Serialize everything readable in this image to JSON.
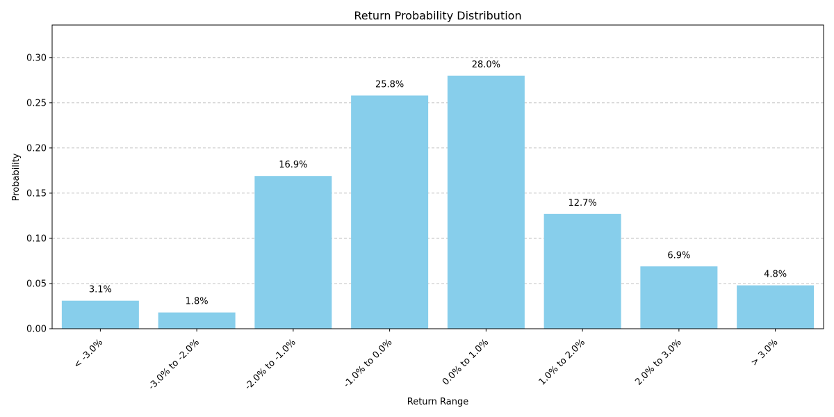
{
  "chart_data": {
    "type": "bar",
    "title": "Return Probability Distribution",
    "xlabel": "Return Range",
    "ylabel": "Probability",
    "categories": [
      "< -3.0%",
      "-3.0% to -2.0%",
      "-2.0% to -1.0%",
      "-1.0% to 0.0%",
      "0.0% to 1.0%",
      "1.0% to 2.0%",
      "2.0% to 3.0%",
      "> 3.0%"
    ],
    "values": [
      0.031,
      0.018,
      0.169,
      0.258,
      0.28,
      0.127,
      0.069,
      0.048
    ],
    "data_labels": [
      "3.1%",
      "1.8%",
      "16.9%",
      "25.8%",
      "28.0%",
      "12.7%",
      "6.9%",
      "4.8%"
    ],
    "yticks": [
      0.0,
      0.05,
      0.1,
      0.15,
      0.2,
      0.25,
      0.3
    ],
    "ytick_labels": [
      "0.00",
      "0.05",
      "0.10",
      "0.15",
      "0.20",
      "0.25",
      "0.30"
    ],
    "ylim": [
      0,
      0.336
    ],
    "grid": "y-axis dashed",
    "bar_color": "#87ceeb"
  }
}
